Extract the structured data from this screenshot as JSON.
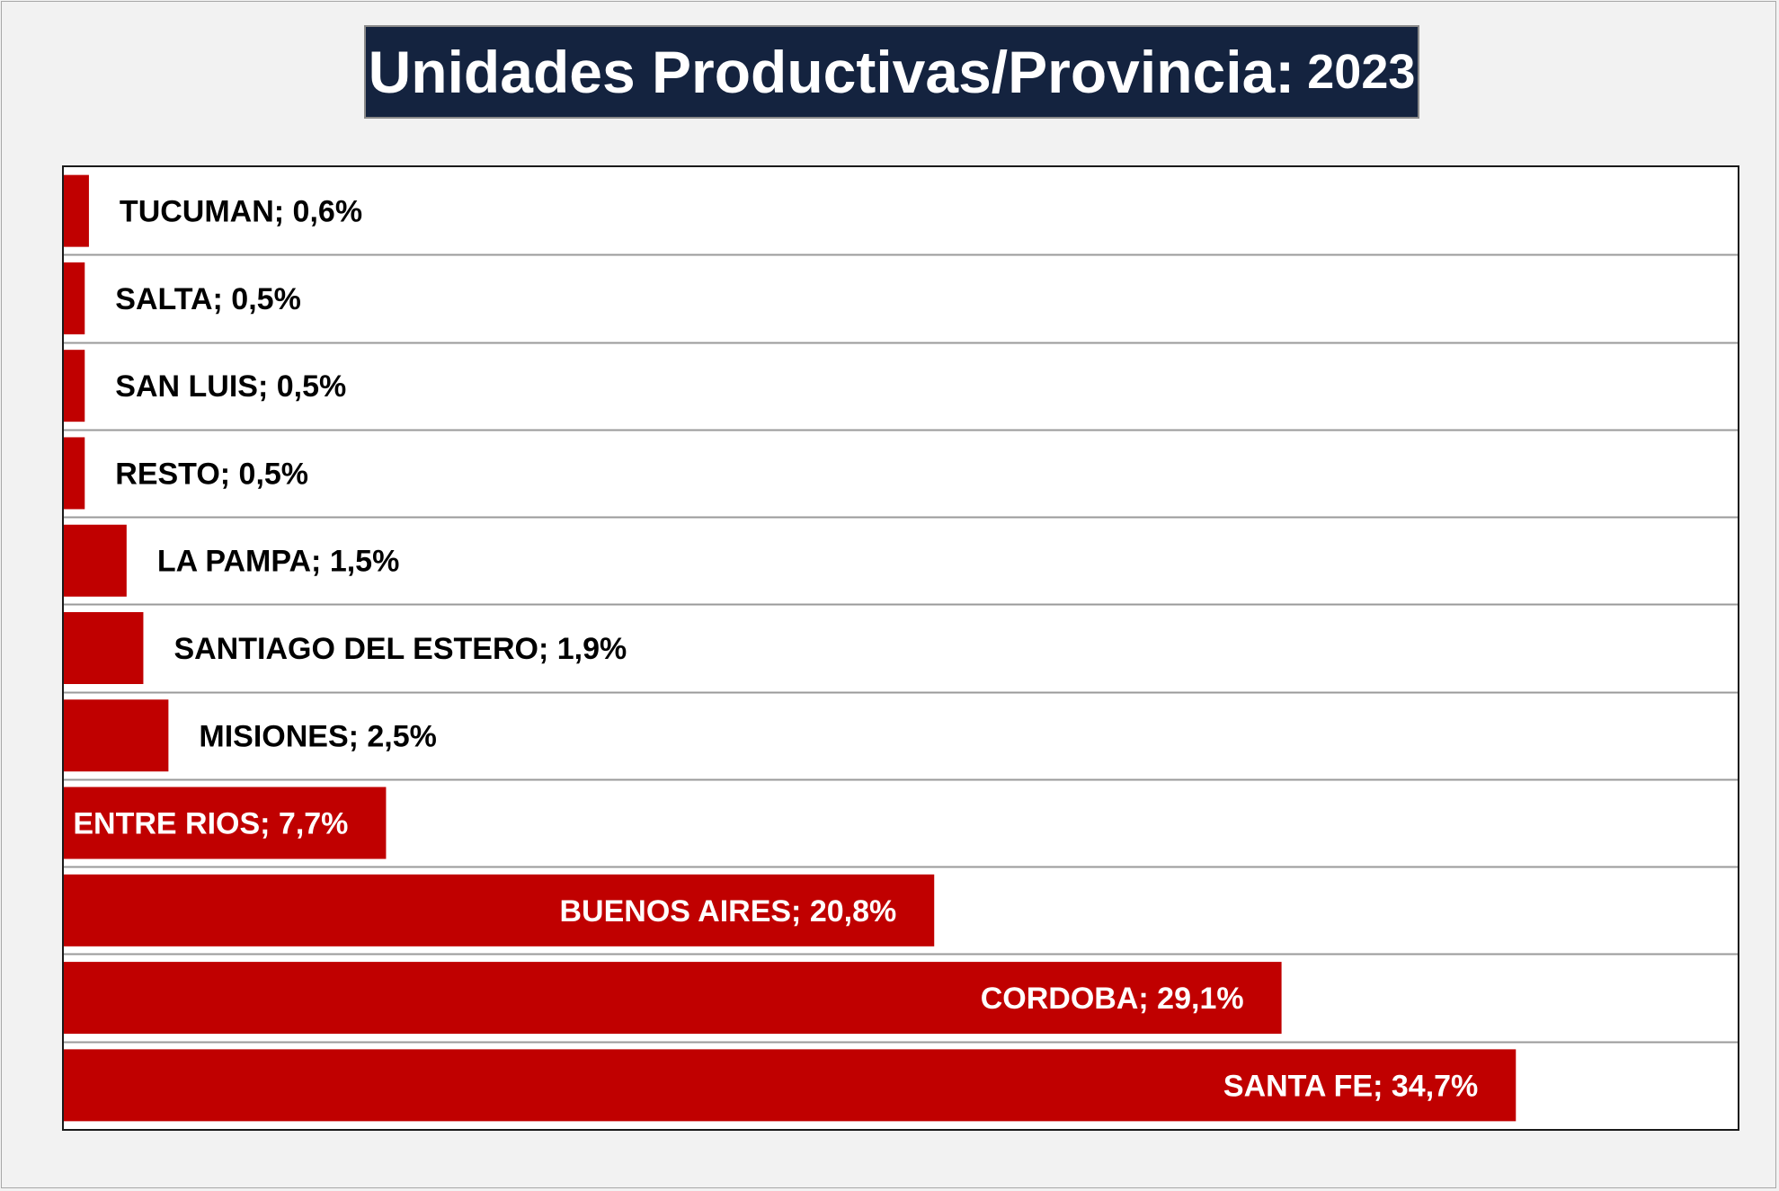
{
  "title": {
    "main": "Unidades Productivas/Provincia:",
    "year": "2023"
  },
  "colors": {
    "bar": "#c00000",
    "title_bg": "#14233f",
    "title_text": "#ffffff",
    "label_dark": "#000000",
    "label_light": "#ffffff",
    "gridline": "#9a9a9a"
  },
  "chart_data": {
    "type": "bar",
    "orientation": "horizontal",
    "title": "Unidades Productivas/Provincia: 2023",
    "categories": [
      "TUCUMAN",
      "SALTA",
      "SAN LUIS",
      "RESTO",
      "LA PAMPA",
      "SANTIAGO DEL ESTERO",
      "MISIONES",
      "ENTRE RIOS",
      "BUENOS AIRES",
      "CORDOBA",
      "SANTA FE"
    ],
    "values": [
      0.6,
      0.5,
      0.5,
      0.5,
      1.5,
      1.9,
      2.5,
      7.7,
      20.8,
      29.1,
      34.7
    ],
    "labels": [
      "TUCUMAN; 0,6%",
      "SALTA; 0,5%",
      "SAN LUIS; 0,5%",
      "RESTO; 0,5%",
      "LA PAMPA; 1,5%",
      "SANTIAGO DEL ESTERO; 1,9%",
      "MISIONES; 2,5%",
      "ENTRE RIOS; 7,7%",
      "BUENOS AIRES; 20,8%",
      "CORDOBA; 29,1%",
      "SANTA FE; 34,7%"
    ],
    "value_unit": "%",
    "xlim": [
      0,
      40
    ],
    "grid": true,
    "legend": "none"
  }
}
